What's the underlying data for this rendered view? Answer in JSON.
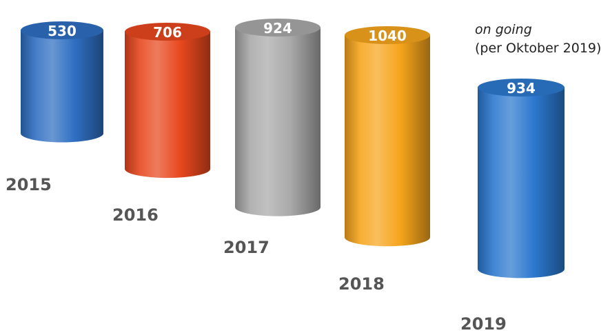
{
  "chart_data": {
    "type": "bar",
    "style": "3d-cylinder",
    "categories": [
      "2015",
      "2016",
      "2017",
      "2018",
      "2019"
    ],
    "values": [
      530,
      706,
      924,
      1040,
      934
    ],
    "colors": [
      "#2f6fc2",
      "#e8481e",
      "#a9a9a9",
      "#f6a51c",
      "#2c78cf"
    ],
    "annotation": {
      "line1": "on going",
      "line2": "(per Oktober 2019)"
    },
    "grid": false,
    "legend": "none"
  }
}
